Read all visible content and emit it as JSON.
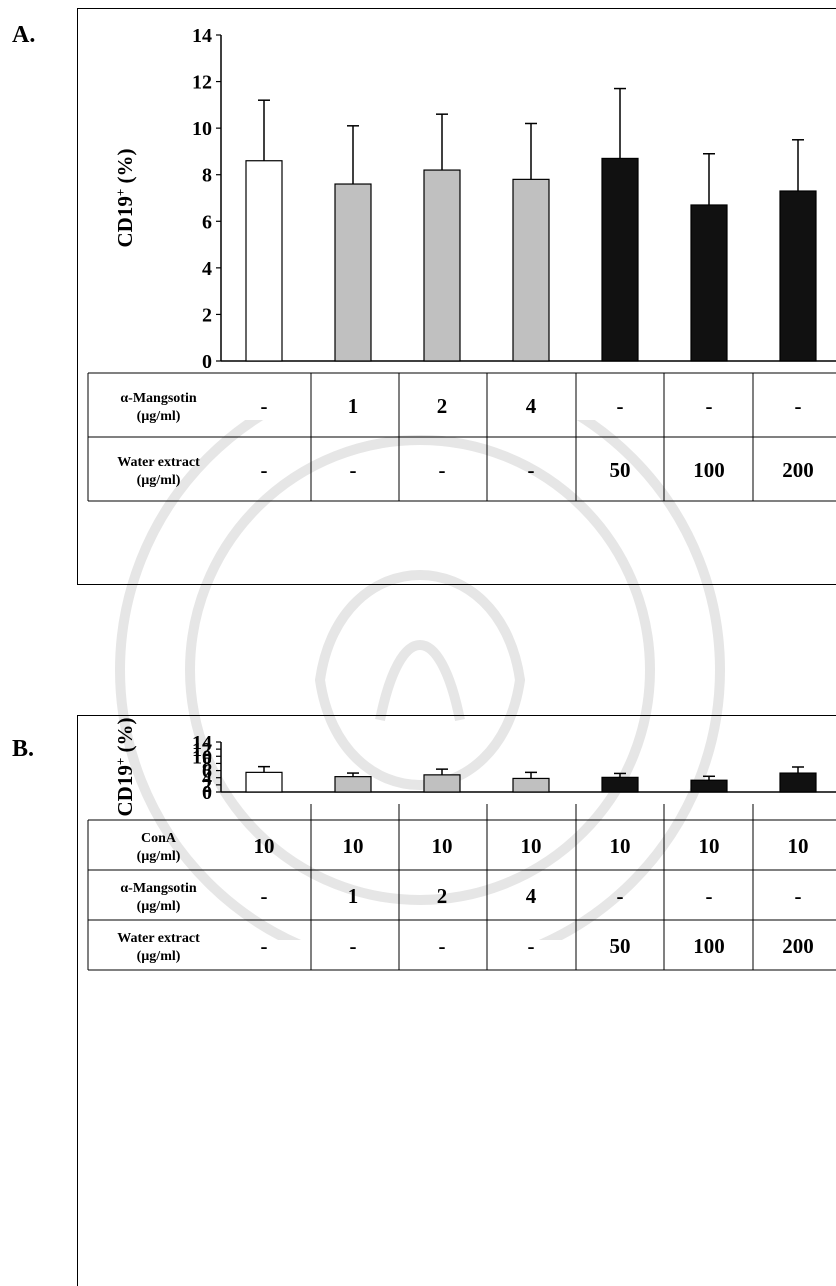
{
  "colors": {
    "control": "#ffffff",
    "mangostin": "#c0c0c0",
    "extract": "#111111",
    "axis": "#000000"
  },
  "chart_data": [
    {
      "panel": "A.",
      "type": "bar",
      "ylabel_main": "CD19",
      "ylabel_sup": "+",
      "ylabel_tail": " (%)",
      "ylim": [
        0,
        14
      ],
      "yticks": [
        "0",
        "2",
        "4",
        "6",
        "8",
        "10",
        "12",
        "14"
      ],
      "groups": [
        "control",
        "mangostin",
        "mangostin",
        "mangostin",
        "extract",
        "extract",
        "extract"
      ],
      "values": [
        8.6,
        7.6,
        8.2,
        7.8,
        8.7,
        6.7,
        7.3
      ],
      "errors": [
        2.6,
        2.5,
        2.4,
        2.4,
        3.0,
        2.2,
        2.2
      ],
      "table": [
        {
          "label": [
            "α-Mangsotin",
            "(µg/ml)"
          ],
          "cells": [
            "-",
            "1",
            "2",
            "4",
            "-",
            "-",
            "-"
          ]
        },
        {
          "label": [
            "Water extract",
            "(µg/ml)"
          ],
          "cells": [
            "-",
            "-",
            "-",
            "-",
            "50",
            "100",
            "200"
          ]
        }
      ]
    },
    {
      "panel": "B.",
      "type": "bar",
      "ylabel_main": "CD19",
      "ylabel_sup": "+",
      "ylabel_tail": " (%)",
      "ylim": [
        0,
        14
      ],
      "yticks": [
        "0",
        "2",
        "4",
        "6",
        "8",
        "10",
        "12",
        "14"
      ],
      "groups": [
        "control",
        "mangostin",
        "mangostin",
        "mangostin",
        "extract",
        "extract",
        "extract"
      ],
      "values": [
        5.5,
        4.3,
        4.8,
        3.8,
        4.1,
        3.3,
        5.3
      ],
      "errors": [
        1.6,
        1.0,
        1.6,
        1.7,
        1.1,
        1.1,
        1.7
      ],
      "table": [
        {
          "label": [
            "ConA",
            "(µg/ml)"
          ],
          "cells": [
            "10",
            "10",
            "10",
            "10",
            "10",
            "10",
            "10"
          ]
        },
        {
          "label": [
            "α-Mangsotin",
            "(µg/ml)"
          ],
          "cells": [
            "-",
            "1",
            "2",
            "4",
            "-",
            "-",
            "-"
          ]
        },
        {
          "label": [
            "Water extract",
            "(µg/ml)"
          ],
          "cells": [
            "-",
            "-",
            "-",
            "-",
            "50",
            "100",
            "200"
          ]
        }
      ]
    }
  ]
}
